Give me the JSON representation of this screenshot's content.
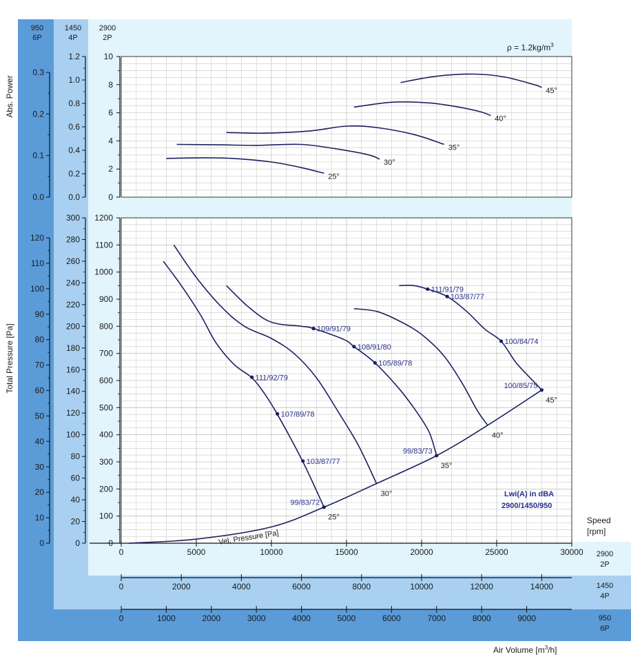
{
  "bands": {
    "p6": {
      "rpm": "950",
      "poles": "6P"
    },
    "p4": {
      "rpm": "1450",
      "poles": "4P"
    },
    "p2": {
      "rpm": "2900",
      "poles": "2P"
    }
  },
  "labels": {
    "density": "ρ = 1.2kg/m",
    "density_sup": "3",
    "abs_power": "Abs. Power",
    "total_pressure": "Total Pressure [Pa]",
    "speed": "Speed",
    "speed_unit": "[rpm]",
    "air_volume": "Air Volume [m",
    "air_volume_sup": "3",
    "air_volume_end": "/h]",
    "lwi_title": "Lwi(A) in dBA",
    "lwi_speeds": "2900/1450/950",
    "vel_pressure": "Vel. Pressure [Pa]"
  },
  "colors": {
    "curve": "#1c1f5e",
    "label": "#2a2f8a",
    "band_dark": "#5b9bd8",
    "band_mid": "#a9d0f0",
    "band_light": "#e2f4fc",
    "grid": "#c8c8c8"
  },
  "chart_data": [
    {
      "type": "line",
      "panel": "absorbed power",
      "xlabel": "Air Volume [m3/h]",
      "ylabel": "Abs. Power",
      "xlim": [
        0,
        30000
      ],
      "ylim": [
        0,
        10
      ],
      "grid": true,
      "ticks_2P": [
        "0",
        "2",
        "4",
        "6",
        "8",
        "10"
      ],
      "ticks_4P": [
        "0.0",
        "0.2",
        "0.4",
        "0.6",
        "0.8",
        "1.0",
        "1.2"
      ],
      "ticks_6P": [
        "0.0",
        "0.1",
        "0.2",
        "0.3"
      ],
      "series": [
        {
          "name": "25°",
          "points": [
            [
              3000,
              2.75
            ],
            [
              5500,
              2.8
            ],
            [
              7500,
              2.75
            ],
            [
              10000,
              2.5
            ],
            [
              12000,
              2.1
            ],
            [
              13500,
              1.7
            ]
          ]
        },
        {
          "name": "30°",
          "points": [
            [
              3700,
              3.75
            ],
            [
              6500,
              3.72
            ],
            [
              9000,
              3.68
            ],
            [
              12000,
              3.75
            ],
            [
              14500,
              3.4
            ],
            [
              16500,
              3.0
            ],
            [
              17200,
              2.7
            ]
          ]
        },
        {
          "name": "35°",
          "points": [
            [
              7000,
              4.6
            ],
            [
              9500,
              4.55
            ],
            [
              12500,
              4.7
            ],
            [
              15000,
              5.05
            ],
            [
              17000,
              4.95
            ],
            [
              19500,
              4.45
            ],
            [
              21500,
              3.75
            ]
          ]
        },
        {
          "name": "40°",
          "points": [
            [
              15500,
              6.4
            ],
            [
              18000,
              6.75
            ],
            [
              20500,
              6.7
            ],
            [
              22500,
              6.4
            ],
            [
              24000,
              6.05
            ],
            [
              24600,
              5.8
            ]
          ]
        },
        {
          "name": "45°",
          "points": [
            [
              18600,
              8.15
            ],
            [
              21000,
              8.6
            ],
            [
              23500,
              8.75
            ],
            [
              25500,
              8.55
            ],
            [
              27500,
              8.0
            ],
            [
              28000,
              7.8
            ]
          ]
        }
      ]
    },
    {
      "type": "line",
      "panel": "total pressure",
      "xlabel": "Air Volume [m3/h]",
      "ylabel": "Total Pressure [Pa]",
      "xlim": [
        0,
        30000
      ],
      "ylim": [
        0,
        1200
      ],
      "grid": true,
      "x_ticks_2P": [
        "0",
        "5000",
        "10000",
        "15000",
        "20000",
        "25000",
        "30000"
      ],
      "x_ticks_4P": [
        "0",
        "2000",
        "4000",
        "6000",
        "8000",
        "10000",
        "12000",
        "14000"
      ],
      "x_ticks_6P": [
        "0",
        "1000",
        "2000",
        "3000",
        "4000",
        "5000",
        "6000",
        "7000",
        "8000",
        "9000"
      ],
      "y_ticks_2P": [
        "0",
        "100",
        "200",
        "300",
        "400",
        "500",
        "600",
        "700",
        "800",
        "900",
        "1000",
        "1100",
        "1200"
      ],
      "y_ticks_4P": [
        "0",
        "20",
        "40",
        "60",
        "80",
        "100",
        "120",
        "140",
        "160",
        "180",
        "200",
        "220",
        "240",
        "260",
        "280",
        "300"
      ],
      "y_ticks_6P": [
        "0",
        "10",
        "20",
        "30",
        "40",
        "50",
        "60",
        "70",
        "80",
        "90",
        "100",
        "110",
        "120"
      ],
      "series": [
        {
          "name": "25°",
          "points": [
            [
              2800,
              1040
            ],
            [
              4000,
              950
            ],
            [
              5300,
              840
            ],
            [
              6300,
              740
            ],
            [
              7500,
              660
            ],
            [
              8700,
              610
            ],
            [
              9500,
              555
            ],
            [
              10400,
              475
            ],
            [
              12100,
              300
            ],
            [
              13500,
              133
            ]
          ]
        },
        {
          "name": "30°",
          "points": [
            [
              3500,
              1100
            ],
            [
              5000,
              980
            ],
            [
              6700,
              870
            ],
            [
              8200,
              800
            ],
            [
              10000,
              755
            ],
            [
              11500,
              700
            ],
            [
              13000,
              610
            ],
            [
              14500,
              480
            ],
            [
              15800,
              360
            ],
            [
              17000,
              220
            ]
          ]
        },
        {
          "name": "35°",
          "points": [
            [
              7000,
              950
            ],
            [
              8500,
              870
            ],
            [
              10000,
              815
            ],
            [
              12000,
              800
            ],
            [
              12800,
              792
            ],
            [
              14800,
              752
            ],
            [
              15500,
              725
            ],
            [
              16900,
              665
            ],
            [
              18500,
              570
            ],
            [
              19600,
              490
            ],
            [
              20500,
              410
            ],
            [
              21000,
              323
            ]
          ]
        },
        {
          "name": "40°",
          "points": [
            [
              15500,
              865
            ],
            [
              17000,
              855
            ],
            [
              18500,
              820
            ],
            [
              20000,
              770
            ],
            [
              21500,
              690
            ],
            [
              22700,
              590
            ],
            [
              23700,
              490
            ],
            [
              24400,
              435
            ]
          ]
        },
        {
          "name": "45°",
          "points": [
            [
              18500,
              950
            ],
            [
              19500,
              950
            ],
            [
              20400,
              937
            ],
            [
              21700,
              910
            ],
            [
              23000,
              855
            ],
            [
              24200,
              790
            ],
            [
              25300,
              745
            ],
            [
              26300,
              665
            ],
            [
              27400,
              600
            ],
            [
              28000,
              565
            ]
          ]
        },
        {
          "name": "Vel. Pressure [Pa]",
          "points": [
            [
              500,
              0
            ],
            [
              5000,
              15
            ],
            [
              10000,
              60
            ],
            [
              13500,
              133
            ],
            [
              17000,
              220
            ],
            [
              21000,
              323
            ],
            [
              24400,
              435
            ],
            [
              28000,
              565
            ]
          ]
        }
      ],
      "noise_points": [
        {
          "label": "111/92/79",
          "x": 8700,
          "y": 612
        },
        {
          "label": "107/89/78",
          "x": 10400,
          "y": 477
        },
        {
          "label": "103/87/77",
          "x": 12100,
          "y": 303
        },
        {
          "label": "99/83/72",
          "x": 13500,
          "y": 133
        },
        {
          "label": "109/91/79",
          "x": 12800,
          "y": 792
        },
        {
          "label": "108/91/80",
          "x": 15500,
          "y": 725
        },
        {
          "label": "105/89/78",
          "x": 16900,
          "y": 665
        },
        {
          "label": "99/83/73",
          "x": 21000,
          "y": 323
        },
        {
          "label": "111/91/79",
          "x": 20400,
          "y": 937
        },
        {
          "label": "103/87/77",
          "x": 21700,
          "y": 910
        },
        {
          "label": "100/84/74",
          "x": 25300,
          "y": 745
        },
        {
          "label": "100/85/75",
          "x": 28000,
          "y": 565
        }
      ]
    }
  ]
}
